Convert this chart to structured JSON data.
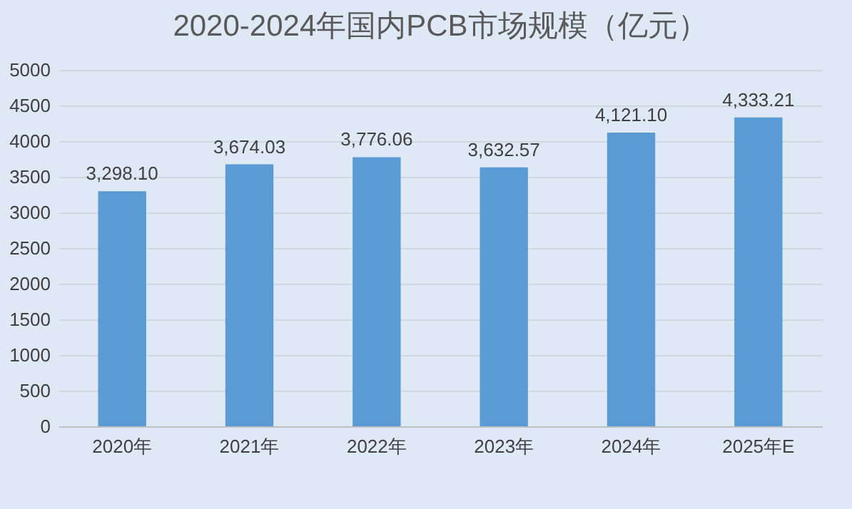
{
  "chart_data": {
    "type": "bar",
    "title": "2020-2024年国内PCB市场规模（亿元）",
    "categories": [
      "2020年",
      "2021年",
      "2022年",
      "2023年",
      "2024年",
      "2025年E"
    ],
    "values": [
      3298.1,
      3674.03,
      3776.06,
      3632.57,
      4121.1,
      4333.21
    ],
    "value_labels": [
      "3,298.10",
      "3,674.03",
      "3,776.06",
      "3,632.57",
      "4,121.10",
      "4,333.21"
    ],
    "color": "#5b9bd5",
    "ylim": [
      0,
      5000
    ],
    "yticks": [
      0,
      500,
      1000,
      1500,
      2000,
      2500,
      3000,
      3500,
      4000,
      4500,
      5000
    ],
    "grid": "y"
  }
}
